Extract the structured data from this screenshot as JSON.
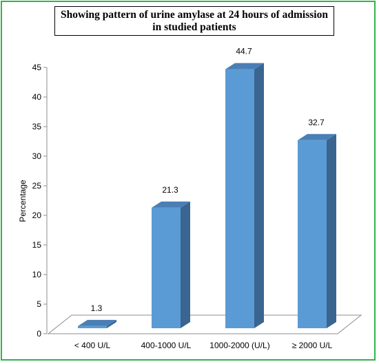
{
  "chart_data": {
    "type": "bar",
    "title_line1": "Showing pattern of urine amylase at 24 hours of admission",
    "title_line2": "in studied patients",
    "xlabel": "",
    "ylabel": "Percentage",
    "ylim": [
      0,
      45
    ],
    "yticks": [
      "0",
      "5",
      "10",
      "15",
      "20",
      "25",
      "30",
      "35",
      "40",
      "45"
    ],
    "categories": [
      "< 400 U/L",
      "400-1000 U/L",
      "1000-2000 (U/L)",
      "≥ 2000 U/L"
    ],
    "values": [
      1.3,
      21.3,
      44.7,
      32.7
    ],
    "value_labels": [
      "1.3",
      "21.3",
      "44.7",
      "32.7"
    ],
    "grid": false,
    "legend": "none",
    "colors": {
      "bar_front": "#5b9bd5",
      "bar_side": "#3a6591",
      "bar_top": "#4a7fb5",
      "border": "#2eb34a"
    }
  }
}
